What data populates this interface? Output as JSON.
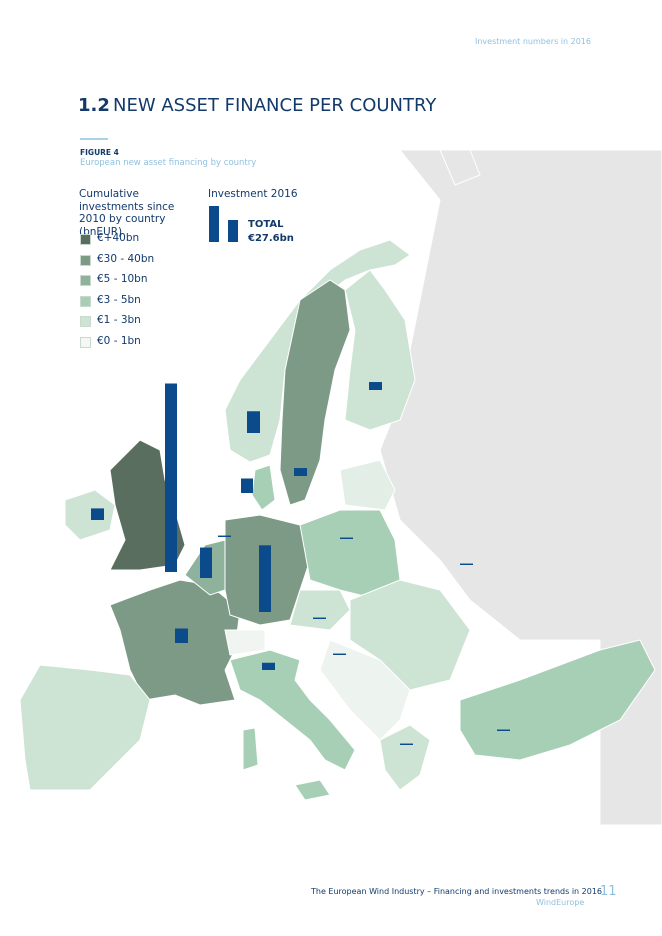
{
  "header": {
    "section": "Investment numbers in 2016"
  },
  "title": {
    "number": "1.2",
    "text": "NEW ASSET FINANCE PER COUNTRY"
  },
  "figure": {
    "label": "FIGURE 4",
    "caption": "European new asset financing by country"
  },
  "legend": {
    "title": "Cumulative investments since 2010 by country (bnEUR)",
    "items": [
      "€+40bn",
      "€30 - 40bn",
      "€5 - 10bn",
      "€3 - 5bn",
      "€1 - 3bn",
      "€0 - 1bn"
    ],
    "bar_title": "Investment 2016",
    "total_label": "TOTAL",
    "total_value": "€27.6bn"
  },
  "map": {
    "investment_2016": [
      13,
      4.6,
      2.1,
      1.5,
      0.55,
      0.55,
      1.0,
      0.8,
      1.0,
      0.5,
      0.1,
      0.1,
      0.1,
      0.1,
      0.1,
      0.1,
      0.1
    ]
  },
  "footer": {
    "publication": "The European Wind Industry – Financing and investments trends in 2016",
    "publisher": "WindEurope",
    "page": "11"
  }
}
